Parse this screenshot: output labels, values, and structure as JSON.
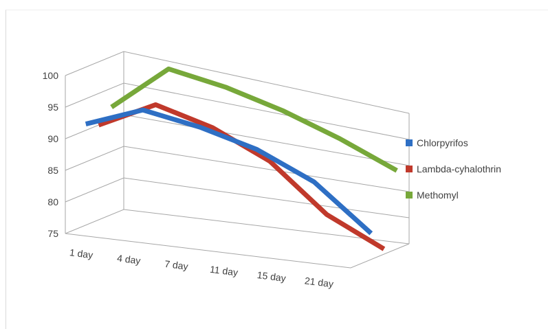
{
  "chart_data": {
    "type": "line",
    "view": "3d",
    "categories": [
      "1 day",
      "4 day",
      "7 day",
      "11 day",
      "15 day",
      "21 day"
    ],
    "series": [
      {
        "name": "Chlorpyrifos",
        "values": [
          91,
          95,
          94,
          92,
          88,
          80
        ]
      },
      {
        "name": "Lambda-cyhalothrin",
        "values": [
          90,
          95,
          93,
          89,
          81,
          76
        ]
      },
      {
        "name": "Methomyl",
        "values": [
          92,
          100,
          99,
          97,
          94,
          90
        ]
      }
    ],
    "ylim": [
      75,
      100
    ],
    "yticks": [
      75,
      80,
      85,
      90,
      95,
      100
    ],
    "grid": true,
    "legend": "right",
    "colors": {
      "Chlorpyrifos": "#2e6fc4",
      "Lambda-cyhalothrin": "#c0392b",
      "Methomyl": "#77a83a",
      "grid": "#a6a6a6",
      "axis_text": "#404040"
    }
  }
}
